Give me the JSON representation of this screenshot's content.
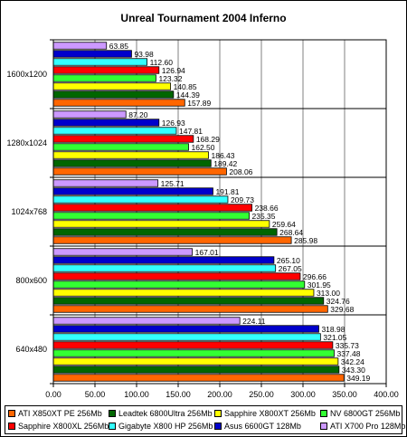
{
  "chart_data": {
    "type": "bar",
    "orientation": "horizontal",
    "title": "Unreal Tournament 2004 Inferno",
    "categories": [
      "1600x1200",
      "1280x1024",
      "1024x768",
      "800x600",
      "640x480"
    ],
    "xlim": [
      0,
      400
    ],
    "xticks": [
      "0.00",
      "50.00",
      "100.00",
      "150.00",
      "200.00",
      "250.00",
      "300.00",
      "350.00",
      "400.00"
    ],
    "grid": "vertical",
    "legend_position": "bottom",
    "series": [
      {
        "name": "ATI X700 Pro 128Mb",
        "color": "#cc99ff",
        "values": [
          63.85,
          87.2,
          125.71,
          167.01,
          224.11
        ],
        "labels": [
          "63.85",
          "87.20",
          "125.71",
          "167.01",
          "224.11"
        ]
      },
      {
        "name": "Asus 6600GT 128Mb",
        "color": "#0000cc",
        "values": [
          93.98,
          126.93,
          191.81,
          265.1,
          318.98
        ],
        "labels": [
          "93.98",
          "126.93",
          "191.81",
          "265.10",
          "318.98"
        ]
      },
      {
        "name": "Gigabyte X800 HP 256Mb",
        "color": "#33ffff",
        "values": [
          112.6,
          147.81,
          209.73,
          267.05,
          321.05
        ],
        "labels": [
          "112.60",
          "147.81",
          "209.73",
          "267.05",
          "321.05"
        ]
      },
      {
        "name": "Sapphire X800XL 256Mb",
        "color": "#ff0000",
        "values": [
          126.94,
          168.29,
          238.66,
          296.66,
          335.73
        ],
        "labels": [
          "126.94",
          "168.29",
          "238.66",
          "296.66",
          "335.73"
        ]
      },
      {
        "name": "NV 6800GT 256Mb",
        "color": "#33ff33",
        "values": [
          123.32,
          162.5,
          235.35,
          301.95,
          337.48
        ],
        "labels": [
          "123.32",
          "162.50",
          "235.35",
          "301.95",
          "337.48"
        ]
      },
      {
        "name": "Sapphire X800XT 256Mb",
        "color": "#ffff00",
        "values": [
          140.85,
          186.43,
          259.64,
          313.0,
          342.24
        ],
        "labels": [
          "140.85",
          "186.43",
          "259.64",
          "313.00",
          "342.24"
        ]
      },
      {
        "name": "Leadtek 6800Ultra 256Mb",
        "color": "#006600",
        "values": [
          144.39,
          189.42,
          268.64,
          324.76,
          343.3
        ],
        "labels": [
          "144.39",
          "189.42",
          "268.64",
          "324.76",
          "343.30"
        ]
      },
      {
        "name": "ATI X850XT PE 256Mb",
        "color": "#ff6600",
        "values": [
          157.89,
          208.06,
          285.98,
          329.68,
          349.19
        ],
        "labels": [
          "157.89",
          "208.06",
          "285.98",
          "329.68",
          "349.19"
        ]
      }
    ],
    "legend_order": [
      "ATI X850XT PE 256Mb",
      "Leadtek 6800Ultra 256Mb",
      "Sapphire X800XT 256Mb",
      "NV 6800GT 256Mb",
      "Sapphire X800XL 256Mb",
      "Gigabyte X800 HP 256Mb",
      "Asus 6600GT 128Mb",
      "ATI X700 Pro 128Mb"
    ]
  }
}
